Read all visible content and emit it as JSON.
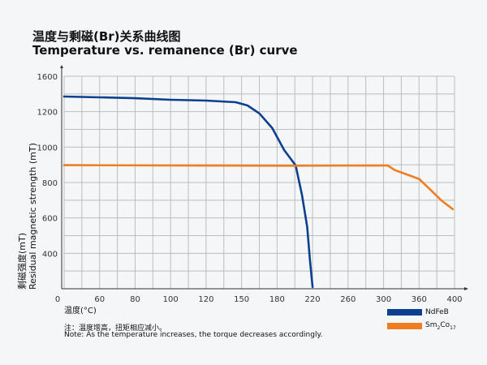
{
  "title_cn": "温度与剩磁(Br)关系曲线图",
  "title_en": "Temperature vs. remanence (Br) curve",
  "note_cn": "注：温度增高，扭矩相应减小。",
  "note_en": "Note: As the temperature increases, the torque decreases accordingly.",
  "chart_data": {
    "type": "line",
    "xlabel": "温度(°C)",
    "ylabel_cn": "剩磁强度(mT)",
    "ylabel_en": "Residual magnetic strength (mT)",
    "x_ticks": [
      "0",
      "60",
      "80",
      "100",
      "120",
      "150",
      "180",
      "220",
      "260",
      "300",
      "360",
      "400"
    ],
    "y_ticks": [
      "1600",
      "1200",
      "1000",
      "800",
      "600",
      "400"
    ],
    "grid": true,
    "legend": "bottom-right",
    "series": [
      {
        "name": "NdFeB",
        "color": "#0b3f8f",
        "points": [
          [
            0,
            1371
          ],
          [
            60,
            1362
          ],
          [
            80,
            1352
          ],
          [
            100,
            1334
          ],
          [
            120,
            1325
          ],
          [
            145,
            1307
          ],
          [
            155,
            1270
          ],
          [
            165,
            1190
          ],
          [
            176,
            1107
          ],
          [
            188,
            983
          ],
          [
            201,
            896
          ],
          [
            208,
            731
          ],
          [
            214,
            548
          ],
          [
            217,
            365
          ],
          [
            220,
            210
          ]
        ]
      },
      {
        "name": "Sm2Co17",
        "name_base": "Sm",
        "name_sub1": "2",
        "name_mid": "Co",
        "name_sub2": "17",
        "color": "#ef7d22",
        "points": [
          [
            0,
            898
          ],
          [
            100,
            896
          ],
          [
            200,
            895
          ],
          [
            307,
            896
          ],
          [
            319,
            870
          ],
          [
            360,
            820
          ],
          [
            372,
            763
          ],
          [
            386,
            695
          ],
          [
            398,
            650
          ]
        ]
      }
    ]
  }
}
